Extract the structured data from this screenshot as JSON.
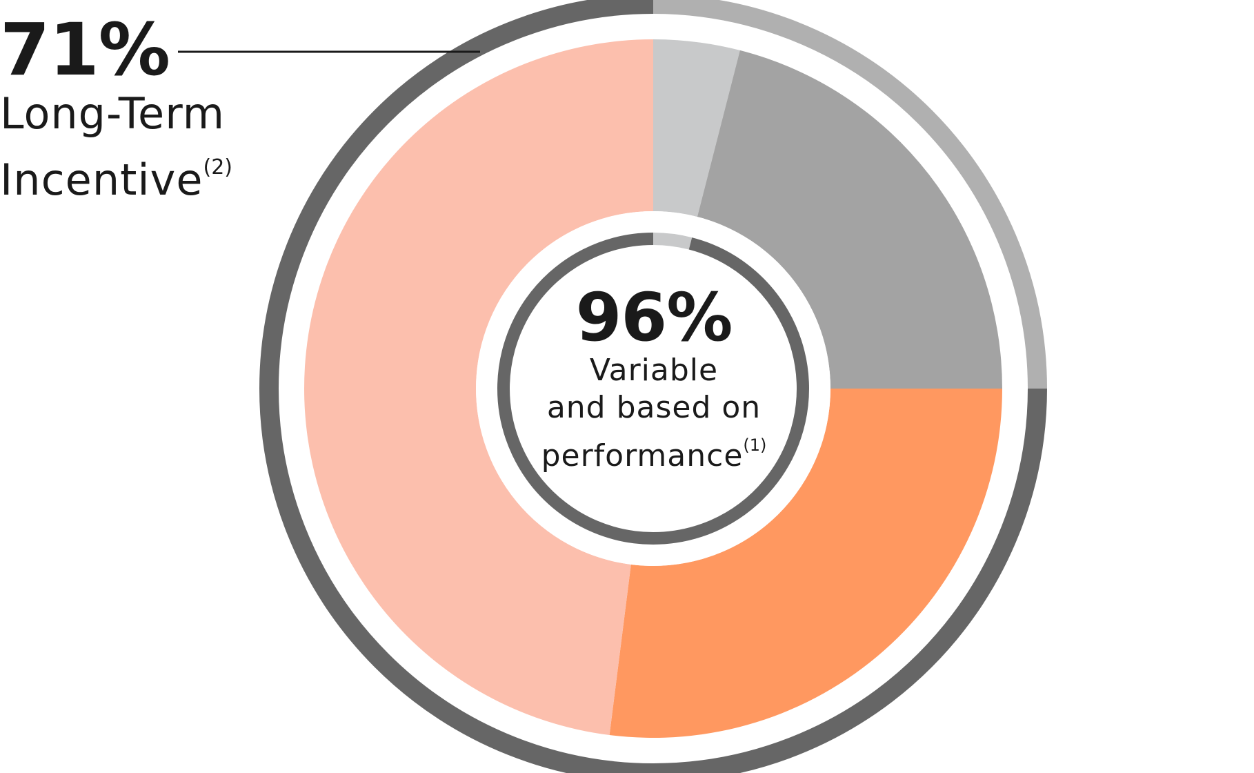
{
  "callout": {
    "percent": "71%",
    "label_line1": "Long-Term",
    "label_line2": "Incentive",
    "footnote": "(2)"
  },
  "center": {
    "percent": "96%",
    "label_line1": "Variable",
    "label_line2": "and based on",
    "label_line3": "performance",
    "footnote": "(1)"
  },
  "chart_data": {
    "type": "pie",
    "inner_slices": [
      {
        "value": 4,
        "color": "#c8c9ca"
      },
      {
        "value": 21,
        "color": "#a3a3a3"
      },
      {
        "value": 27,
        "color": "#ff9860"
      },
      {
        "value": 48,
        "color": "#fcbfad"
      }
    ],
    "outer_ring": [
      {
        "value": 25,
        "color": "#b0b0b0"
      },
      {
        "value": 75,
        "color": "#666666"
      }
    ],
    "center_ring": [
      {
        "value": 4,
        "color": "#c8c9ca"
      },
      {
        "value": 96,
        "color": "#666666"
      }
    ],
    "leader_line_color": "#1a1a1a"
  }
}
